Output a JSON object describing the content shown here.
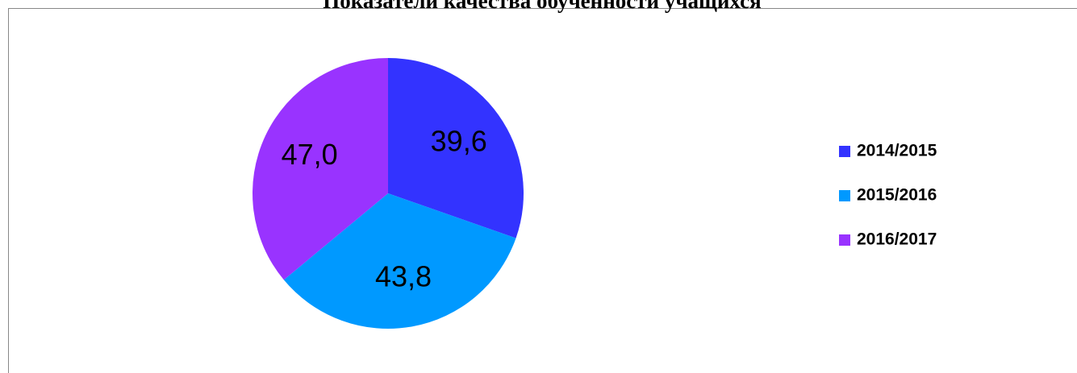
{
  "chart_data": {
    "type": "pie",
    "title": "Показатели качества обученности учащихся",
    "categories": [
      "2014/2015",
      "2015/2016",
      "2016/2017"
    ],
    "values": [
      39.6,
      43.8,
      47.0
    ],
    "value_labels": [
      "39,6",
      "43,8",
      "47,0"
    ],
    "colors": [
      "#3333ff",
      "#0099ff",
      "#9933ff"
    ],
    "legend": "right"
  }
}
